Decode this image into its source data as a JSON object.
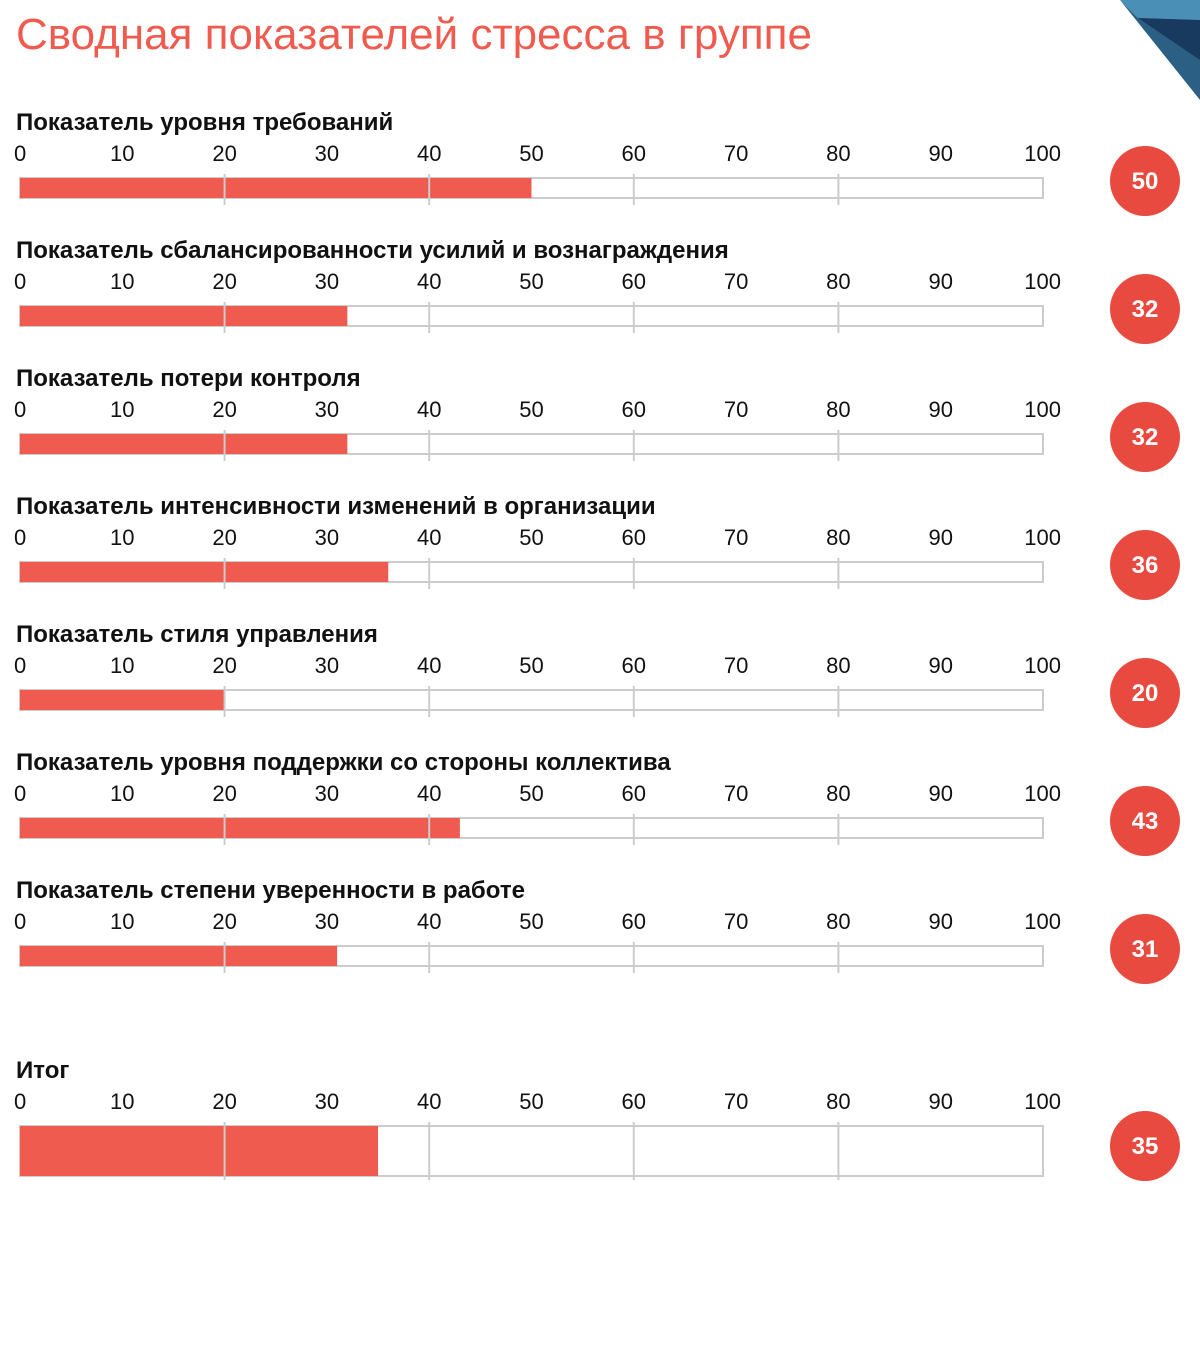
{
  "page": {
    "title": "Сводная показателей стресса в группе"
  },
  "decoration": {
    "icon": "corner-polygon-logo",
    "colors": [
      "#4a8fb5",
      "#2c5f84",
      "#173a5e"
    ]
  },
  "colors": {
    "accent": "#ef5b4f",
    "track_border": "#cccccc",
    "grid": "#cccccc",
    "value_badge": "#e84a3f"
  },
  "chart_data": {
    "type": "bar",
    "orientation": "horizontal",
    "xlim": [
      0,
      100
    ],
    "ticks": [
      0,
      10,
      20,
      30,
      40,
      50,
      60,
      70,
      80,
      90,
      100
    ],
    "grid": true,
    "rows": [
      {
        "label": "Показатель уровня требований",
        "value": 50
      },
      {
        "label": "Показатель сбалансированности усилий и вознаграждения",
        "value": 32
      },
      {
        "label": "Показатель потери контроля",
        "value": 32
      },
      {
        "label": "Показатель интенсивности изменений в организации",
        "value": 36
      },
      {
        "label": "Показатель стиля управления",
        "value": 20
      },
      {
        "label": "Показатель уровня поддержки со стороны коллектива",
        "value": 43
      },
      {
        "label": "Показатель степени уверенности в работе",
        "value": 31
      }
    ],
    "total": {
      "label": "Итог",
      "value": 35
    }
  }
}
